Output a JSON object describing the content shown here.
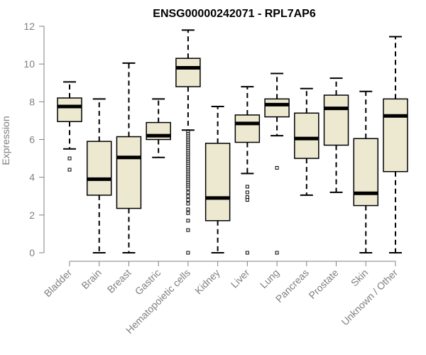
{
  "chart_data": {
    "type": "box",
    "title": "ENSG00000242071 - RPL7AP6",
    "xlabel": "",
    "ylabel": "Expression",
    "ylim": [
      0,
      12
    ],
    "yticks": [
      0,
      2,
      4,
      6,
      8,
      10,
      12
    ],
    "categories": [
      "Bladder",
      "Brain",
      "Breast",
      "Gastric",
      "Hematopoietic cells",
      "Kidney",
      "Liver",
      "Lung",
      "Pancreas",
      "Prostate",
      "Skin",
      "Unknown / Other"
    ],
    "boxes": [
      {
        "name": "Bladder",
        "whisker_low": 5.5,
        "q1": 6.95,
        "median": 7.75,
        "q3": 8.2,
        "whisker_high": 9.05,
        "outliers": [
          5.0,
          4.4
        ]
      },
      {
        "name": "Brain",
        "whisker_low": 0.0,
        "q1": 3.05,
        "median": 3.9,
        "q3": 5.9,
        "whisker_high": 8.15,
        "outliers": []
      },
      {
        "name": "Breast",
        "whisker_low": 0.0,
        "q1": 2.35,
        "median": 5.05,
        "q3": 6.15,
        "whisker_high": 10.05,
        "outliers": []
      },
      {
        "name": "Gastric",
        "whisker_low": 5.05,
        "q1": 6.0,
        "median": 6.2,
        "q3": 6.9,
        "whisker_high": 8.15,
        "outliers": []
      },
      {
        "name": "Hematopoietic cells",
        "whisker_low": 6.5,
        "q1": 8.8,
        "median": 9.8,
        "q3": 10.3,
        "whisker_high": 11.8,
        "outliers": [
          6.4,
          6.3,
          6.2,
          6.1,
          6.0,
          5.9,
          5.8,
          5.7,
          5.6,
          5.5,
          5.4,
          5.3,
          5.2,
          5.1,
          5.0,
          4.9,
          4.8,
          4.7,
          4.6,
          4.5,
          4.4,
          4.3,
          4.2,
          4.1,
          4.0,
          3.9,
          3.8,
          3.7,
          3.6,
          3.5,
          3.4,
          3.2,
          3.0,
          2.8,
          2.6,
          2.3,
          2.1,
          1.7,
          1.2,
          0.0
        ]
      },
      {
        "name": "Kidney",
        "whisker_low": 0.0,
        "q1": 1.7,
        "median": 2.9,
        "q3": 5.8,
        "whisker_high": 7.75,
        "outliers": []
      },
      {
        "name": "Liver",
        "whisker_low": 4.2,
        "q1": 5.85,
        "median": 6.85,
        "q3": 7.3,
        "whisker_high": 8.8,
        "outliers": [
          3.5,
          3.2,
          2.95,
          2.8,
          0.0
        ]
      },
      {
        "name": "Lung",
        "whisker_low": 6.2,
        "q1": 7.2,
        "median": 7.85,
        "q3": 8.15,
        "whisker_high": 9.5,
        "outliers": [
          4.5,
          0.0
        ]
      },
      {
        "name": "Pancreas",
        "whisker_low": 3.05,
        "q1": 5.0,
        "median": 6.05,
        "q3": 7.4,
        "whisker_high": 8.7,
        "outliers": []
      },
      {
        "name": "Prostate",
        "whisker_low": 3.2,
        "q1": 5.7,
        "median": 7.65,
        "q3": 8.35,
        "whisker_high": 9.25,
        "outliers": []
      },
      {
        "name": "Skin",
        "whisker_low": 0.0,
        "q1": 2.5,
        "median": 3.15,
        "q3": 6.05,
        "whisker_high": 8.55,
        "outliers": []
      },
      {
        "name": "Unknown / Other",
        "whisker_low": 0.0,
        "q1": 4.3,
        "median": 7.25,
        "q3": 8.15,
        "whisker_high": 11.45,
        "outliers": []
      }
    ],
    "colors": {
      "box_fill": "#ede8d0",
      "box_stroke": "#000000",
      "axis": "#808080",
      "title": "#000000"
    },
    "grid": false,
    "legend": "none"
  }
}
